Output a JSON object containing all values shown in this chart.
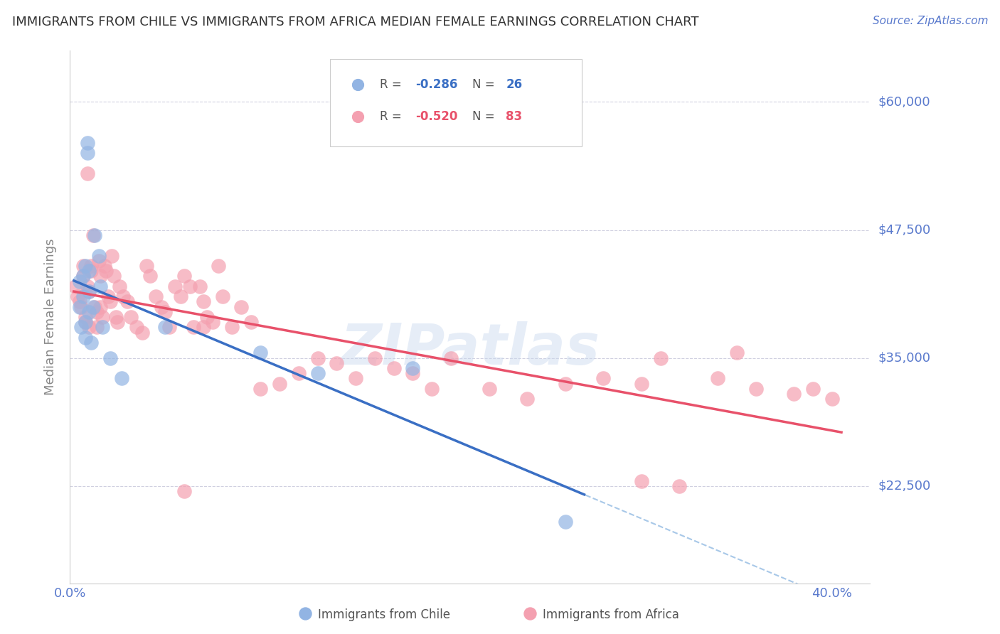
{
  "title": "IMMIGRANTS FROM CHILE VS IMMIGRANTS FROM AFRICA MEDIAN FEMALE EARNINGS CORRELATION CHART",
  "source": "Source: ZipAtlas.com",
  "ylabel": "Median Female Earnings",
  "ytick_labels": [
    "$60,000",
    "$47,500",
    "$35,000",
    "$22,500"
  ],
  "ytick_values": [
    60000,
    47500,
    35000,
    22500
  ],
  "ylim": [
    13000,
    65000
  ],
  "xlim": [
    0.0,
    0.42
  ],
  "chile_color": "#92b4e3",
  "africa_color": "#f4a0b0",
  "trendline_chile_color": "#3a6fc4",
  "trendline_africa_color": "#e8516a",
  "dashed_line_color": "#a8c8e8",
  "background_color": "#ffffff",
  "grid_color": "#d0d0e0",
  "axis_label_color": "#5a7acd",
  "watermark": "ZIPatlas",
  "chile_x": [
    0.005,
    0.005,
    0.006,
    0.007,
    0.007,
    0.008,
    0.008,
    0.008,
    0.009,
    0.009,
    0.01,
    0.01,
    0.01,
    0.011,
    0.012,
    0.013,
    0.015,
    0.016,
    0.017,
    0.021,
    0.027,
    0.05,
    0.1,
    0.18,
    0.26,
    0.13
  ],
  "chile_y": [
    42500,
    40000,
    38000,
    43000,
    41000,
    44000,
    38500,
    37000,
    56000,
    55000,
    43500,
    41500,
    39500,
    36500,
    40000,
    47000,
    45000,
    42000,
    38000,
    35000,
    33000,
    38000,
    35500,
    34000,
    19000,
    33500
  ],
  "africa_x": [
    0.003,
    0.004,
    0.005,
    0.006,
    0.007,
    0.007,
    0.008,
    0.008,
    0.009,
    0.009,
    0.01,
    0.01,
    0.011,
    0.011,
    0.012,
    0.013,
    0.014,
    0.014,
    0.015,
    0.016,
    0.016,
    0.017,
    0.018,
    0.019,
    0.02,
    0.021,
    0.022,
    0.023,
    0.024,
    0.025,
    0.026,
    0.028,
    0.03,
    0.032,
    0.035,
    0.038,
    0.04,
    0.042,
    0.045,
    0.048,
    0.05,
    0.052,
    0.055,
    0.058,
    0.06,
    0.063,
    0.065,
    0.068,
    0.07,
    0.072,
    0.075,
    0.078,
    0.08,
    0.085,
    0.09,
    0.095,
    0.1,
    0.11,
    0.12,
    0.13,
    0.14,
    0.15,
    0.16,
    0.17,
    0.18,
    0.19,
    0.2,
    0.22,
    0.24,
    0.26,
    0.28,
    0.3,
    0.31,
    0.32,
    0.34,
    0.35,
    0.36,
    0.38,
    0.39,
    0.4,
    0.3,
    0.06,
    0.07
  ],
  "africa_y": [
    42000,
    41000,
    40500,
    40000,
    44000,
    43000,
    39000,
    38500,
    53000,
    42000,
    41500,
    38000,
    44000,
    43500,
    47000,
    40000,
    39500,
    38000,
    44500,
    43000,
    40000,
    39000,
    44000,
    43500,
    41000,
    40500,
    45000,
    43000,
    39000,
    38500,
    42000,
    41000,
    40500,
    39000,
    38000,
    37500,
    44000,
    43000,
    41000,
    40000,
    39500,
    38000,
    42000,
    41000,
    43000,
    42000,
    38000,
    42000,
    40500,
    39000,
    38500,
    44000,
    41000,
    38000,
    40000,
    38500,
    32000,
    32500,
    33500,
    35000,
    34500,
    33000,
    35000,
    34000,
    33500,
    32000,
    35000,
    32000,
    31000,
    32500,
    33000,
    23000,
    35000,
    22500,
    33000,
    35500,
    32000,
    31500,
    32000,
    31000,
    32500,
    22000,
    38000
  ]
}
